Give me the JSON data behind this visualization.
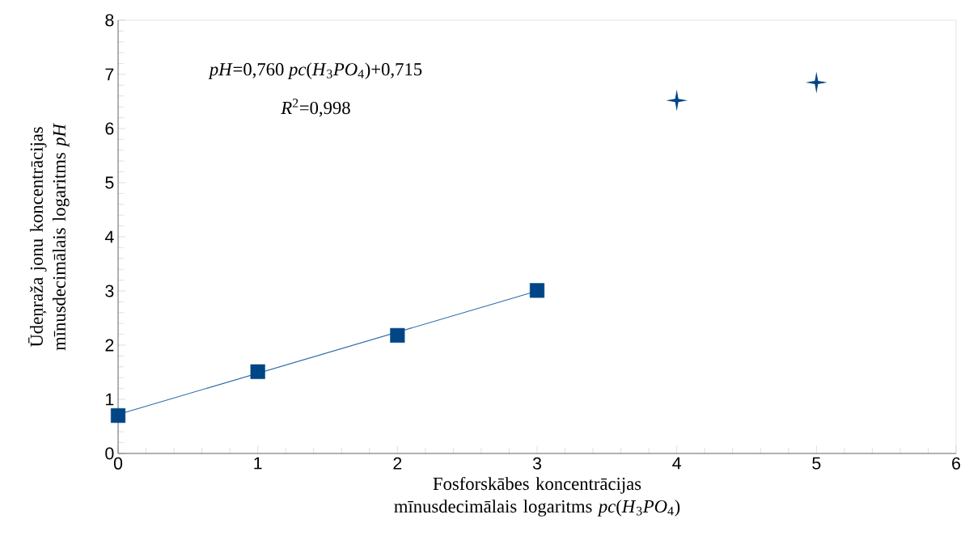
{
  "chart_data": {
    "type": "scatter",
    "xlabel": "Fosforskābes koncentrācijas mīnusdecimālais logaritms *pc*(*H*$_{3}$*PO*$_{4}$)",
    "ylabel": "Ūdeņraža jonu koncentrācijas mīnusdecimālais logaritms *pH*",
    "xlim": [
      0,
      6
    ],
    "xticks": [
      0,
      1,
      2,
      3,
      4,
      5,
      6
    ],
    "ylim": [
      0,
      8
    ],
    "yticks": [
      0,
      1,
      2,
      3,
      4,
      5,
      6,
      7,
      8
    ],
    "grid": false,
    "series": [
      {
        "type": "line",
        "color": "#2a6aa8",
        "x": [
          0,
          3
        ],
        "values": [
          0.72,
          3.0
        ],
        "marker": "none",
        "line_style": "solid"
      },
      {
        "color": "#004586",
        "x": [
          0,
          1,
          2,
          3
        ],
        "values": [
          0.7,
          1.51,
          2.18,
          3.01
        ],
        "marker": "square"
      },
      {
        "color": "#004586",
        "x": [
          4,
          5
        ],
        "values": [
          6.52,
          6.85
        ],
        "marker": "star"
      }
    ],
    "annotations": [
      "*pH*=0,760 *pc*(*H*$_{3}$*PO*$_{4}$)+0,715",
      "*R*$^{2}$=0,998"
    ]
  }
}
